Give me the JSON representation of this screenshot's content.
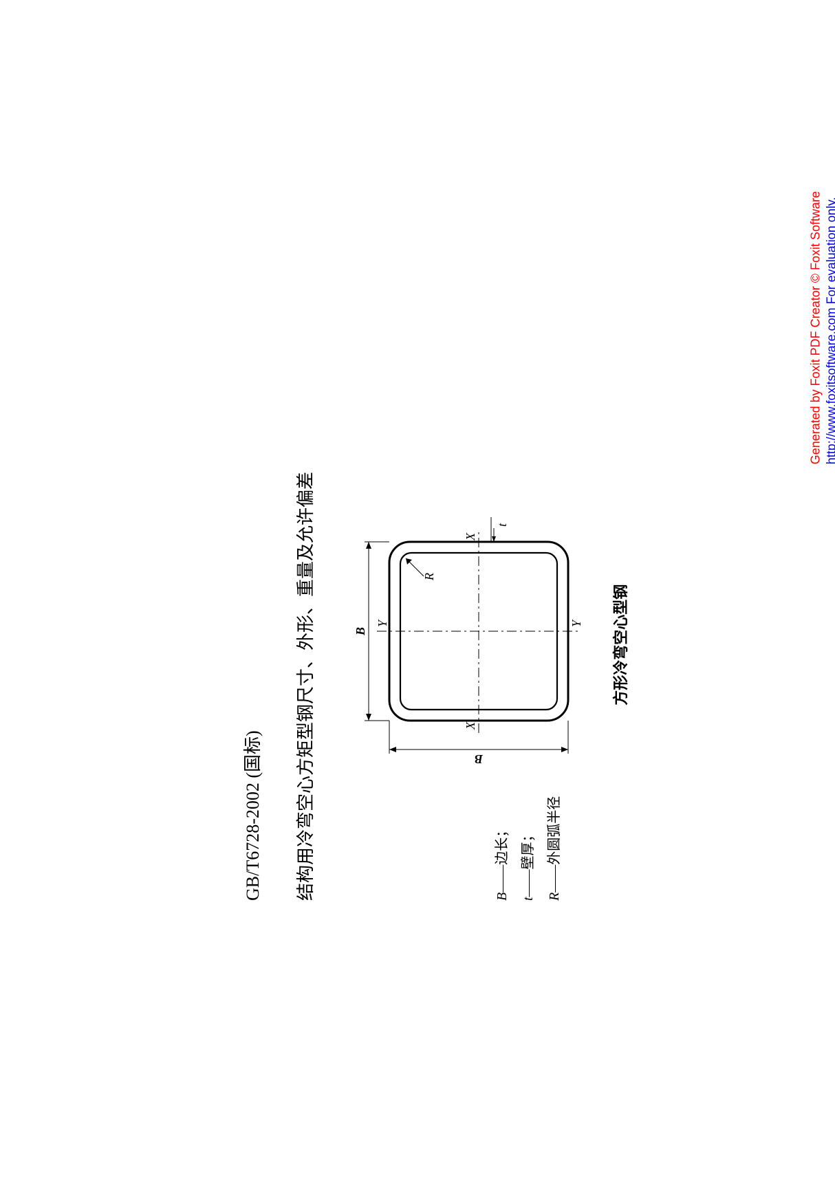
{
  "watermark": {
    "line1": "Generated by Foxit PDF Creator © Foxit Software",
    "line2_url": "http://www.foxitsoftware.com",
    "line2_tail": "   For evaluation only.",
    "color_line1": "#ff0000",
    "color_line2": "#0000ff",
    "fontsize": 18
  },
  "standard_number": "GB/T6728-2002 (国标)",
  "title": "结构用冷弯空心方矩型钢尺寸、外形、重量及允许偏差",
  "legend": {
    "B": {
      "sym": "B",
      "desc": "边长；"
    },
    "t": {
      "sym": "t",
      "desc": "壁厚；"
    },
    "R": {
      "sym": "R",
      "desc": "外圆弧半径"
    }
  },
  "figure_caption": "方形冷弯空心型钢",
  "diagram": {
    "type": "diagram",
    "outer_size": 260,
    "wall_t": 16,
    "corner_R": 30,
    "inner_corner_R": 16,
    "stroke_color": "#000000",
    "stroke_width_outer": 3,
    "stroke_width_inner": 2.2,
    "centerline_width": 1,
    "labels": {
      "B_side": "B",
      "B_top": "B",
      "X": "X",
      "Y": "Y",
      "R": "R",
      "t": "t"
    },
    "label_fontsize": 18,
    "label_fontstyle": "italic",
    "background_color": "#ffffff"
  }
}
